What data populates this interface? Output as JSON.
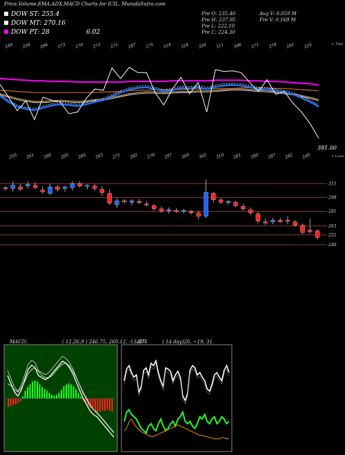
{
  "title": "Price,Volume,EMA,ADX,MACD Charts for ICIL. MunafaSutra.com",
  "legend": [
    {
      "label": "DOW ST: 255.4",
      "color": "#ffffff"
    },
    {
      "label": "DOW MT: 270.16",
      "color": "#ffffff"
    },
    {
      "label": "DOW PT: 28",
      "color": "#ff00ff"
    }
  ],
  "legend_extra": "6.02",
  "stats": {
    "pre_o": "Pre  O: 235.40",
    "pre_h": "Pre  H: 237.95",
    "pre_l": "Pre  L: 222.10",
    "pre_c": "Pre  C: 224.30",
    "avg_v": "Avg V: 0.059 M",
    "pre_v": "Pre  V: 0.169 M"
  },
  "top_label": "< Tops",
  "low_label": "< Lows",
  "last_close": "381.00",
  "chart_data": [
    {
      "type": "line",
      "title": "Price with EMAs (tops / lows)",
      "tops_labels": [
        "249",
        "259",
        "266",
        "273",
        "270",
        "273",
        "271",
        "287",
        "275",
        "314",
        "324",
        "326",
        "311",
        "306",
        "271",
        "279",
        "291",
        "225"
      ],
      "lows_labels": [
        "255",
        "261",
        "266",
        "265",
        "285",
        "263",
        "271",
        "282",
        "279",
        "297",
        "309",
        "302",
        "310",
        "281",
        "280",
        "287",
        "282",
        "249"
      ],
      "price_line": [
        292,
        270,
        247,
        264,
        232,
        270,
        265,
        262,
        242,
        245,
        268,
        284,
        282,
        320,
        302,
        321,
        312,
        312,
        278,
        257,
        284,
        304,
        276,
        295,
        245,
        317,
        314,
        315,
        312,
        295,
        280,
        300,
        275,
        280,
        260,
        245,
        225,
        200
      ],
      "ema_short": [
        272,
        262,
        254,
        250,
        248,
        252,
        256,
        258,
        257,
        255,
        258,
        262,
        265,
        272,
        278,
        283,
        286,
        287,
        284,
        280,
        282,
        286,
        285,
        287,
        284,
        288,
        290,
        291,
        290,
        287,
        284,
        284,
        281,
        279,
        275,
        269,
        262,
        254
      ],
      "ema_mid": [
        276,
        272,
        268,
        265,
        263,
        263,
        264,
        265,
        264,
        263,
        264,
        266,
        267,
        270,
        273,
        276,
        278,
        279,
        279,
        278,
        279,
        280,
        280,
        281,
        281,
        282,
        283,
        284,
        284,
        283,
        282,
        281,
        280,
        278,
        276,
        273,
        270,
        266
      ],
      "ema_long": [
        282,
        281,
        280,
        279,
        278,
        278,
        278,
        278,
        278,
        278,
        278,
        278,
        279,
        279,
        280,
        281,
        282,
        282,
        283,
        283,
        283,
        283,
        284,
        284,
        284,
        285,
        285,
        285,
        286,
        286,
        286,
        285,
        285,
        285,
        284,
        283,
        282,
        281
      ],
      "dow_pt_line": [
        302,
        301,
        300,
        299,
        298,
        298,
        297,
        297,
        297,
        296,
        296,
        296,
        296,
        296,
        296,
        297,
        297,
        297,
        297,
        297,
        298,
        298,
        298,
        298,
        298,
        299,
        299,
        299,
        299,
        298,
        298,
        297,
        297,
        296,
        295,
        294,
        293,
        291
      ]
    },
    {
      "type": "candlestick",
      "title": "Candles",
      "level_labels": [
        "315",
        "298",
        "281",
        "263",
        "252",
        "240"
      ],
      "candles": [
        {
          "o": 310,
          "h": 312,
          "l": 306,
          "c": 309,
          "up": false
        },
        {
          "o": 309,
          "h": 318,
          "l": 305,
          "c": 313,
          "up": true
        },
        {
          "o": 311,
          "h": 315,
          "l": 306,
          "c": 308,
          "up": false
        },
        {
          "o": 312,
          "h": 318,
          "l": 309,
          "c": 314,
          "up": true
        },
        {
          "o": 313,
          "h": 317,
          "l": 308,
          "c": 310,
          "up": false
        },
        {
          "o": 307,
          "h": 312,
          "l": 302,
          "c": 305,
          "up": false
        },
        {
          "o": 303,
          "h": 315,
          "l": 301,
          "c": 311,
          "up": true
        },
        {
          "o": 311,
          "h": 313,
          "l": 305,
          "c": 308,
          "up": false
        },
        {
          "o": 309,
          "h": 312,
          "l": 305,
          "c": 311,
          "up": true
        },
        {
          "o": 310,
          "h": 318,
          "l": 306,
          "c": 315,
          "up": true
        },
        {
          "o": 315,
          "h": 318,
          "l": 310,
          "c": 312,
          "up": false
        },
        {
          "o": 312,
          "h": 314,
          "l": 308,
          "c": 313,
          "up": true
        },
        {
          "o": 312,
          "h": 315,
          "l": 306,
          "c": 309,
          "up": false
        },
        {
          "o": 308,
          "h": 312,
          "l": 300,
          "c": 304,
          "up": false
        },
        {
          "o": 303,
          "h": 308,
          "l": 289,
          "c": 291,
          "up": false
        },
        {
          "o": 289,
          "h": 297,
          "l": 285,
          "c": 294,
          "up": true
        },
        {
          "o": 294,
          "h": 296,
          "l": 290,
          "c": 293,
          "up": false
        },
        {
          "o": 292,
          "h": 296,
          "l": 288,
          "c": 294,
          "up": true
        },
        {
          "o": 293,
          "h": 296,
          "l": 290,
          "c": 292,
          "up": false
        },
        {
          "o": 290,
          "h": 293,
          "l": 287,
          "c": 289,
          "up": false
        },
        {
          "o": 288,
          "h": 290,
          "l": 282,
          "c": 284,
          "up": false
        },
        {
          "o": 284,
          "h": 287,
          "l": 279,
          "c": 281,
          "up": false
        },
        {
          "o": 282,
          "h": 286,
          "l": 278,
          "c": 283,
          "up": true
        },
        {
          "o": 282,
          "h": 285,
          "l": 279,
          "c": 281,
          "up": false
        },
        {
          "o": 281,
          "h": 284,
          "l": 278,
          "c": 282,
          "up": true
        },
        {
          "o": 281,
          "h": 283,
          "l": 277,
          "c": 279,
          "up": false
        },
        {
          "o": 279,
          "h": 282,
          "l": 271,
          "c": 275,
          "up": false
        },
        {
          "o": 275,
          "h": 320,
          "l": 273,
          "c": 304,
          "up": true
        },
        {
          "o": 303,
          "h": 305,
          "l": 292,
          "c": 295,
          "up": false
        },
        {
          "o": 295,
          "h": 297,
          "l": 290,
          "c": 292,
          "up": false
        },
        {
          "o": 292,
          "h": 295,
          "l": 289,
          "c": 293,
          "up": true
        },
        {
          "o": 292,
          "h": 294,
          "l": 286,
          "c": 288,
          "up": false
        },
        {
          "o": 287,
          "h": 290,
          "l": 282,
          "c": 284,
          "up": false
        },
        {
          "o": 283,
          "h": 286,
          "l": 276,
          "c": 279,
          "up": false
        },
        {
          "o": 278,
          "h": 280,
          "l": 266,
          "c": 269,
          "up": false
        },
        {
          "o": 268,
          "h": 272,
          "l": 264,
          "c": 268,
          "up": false
        },
        {
          "o": 268,
          "h": 273,
          "l": 265,
          "c": 270,
          "up": true
        },
        {
          "o": 270,
          "h": 273,
          "l": 267,
          "c": 268,
          "up": false
        },
        {
          "o": 269,
          "h": 275,
          "l": 265,
          "c": 270,
          "up": false
        },
        {
          "o": 268,
          "h": 270,
          "l": 262,
          "c": 264,
          "up": false
        },
        {
          "o": 264,
          "h": 266,
          "l": 253,
          "c": 255,
          "up": false
        },
        {
          "o": 256,
          "h": 272,
          "l": 254,
          "c": 258,
          "up": false
        },
        {
          "o": 257,
          "h": 259,
          "l": 246,
          "c": 249,
          "up": false
        }
      ]
    },
    {
      "type": "bar",
      "title": "MACD",
      "header": "MACD:",
      "params": "( 12,26,9 ) 246.75, 260.12, -13.37",
      "histogram": [
        -9,
        -8,
        -7,
        -6,
        -5,
        -3,
        2,
        8,
        12,
        15,
        18,
        19,
        18,
        15,
        12,
        10,
        8,
        6,
        4,
        3,
        4,
        6,
        9,
        13,
        15,
        16,
        15,
        13,
        10,
        6,
        2,
        -2,
        -5,
        -8,
        -10,
        -12,
        -13,
        -14,
        -14,
        -13,
        -13,
        -12,
        -13,
        -14
      ],
      "macd_line": [
        0.5,
        0.3,
        0.1,
        0.0,
        0.15,
        0.4,
        0.65,
        0.75,
        0.7,
        0.5,
        0.45,
        0.4,
        0.45,
        0.55,
        0.65,
        0.75,
        0.85,
        0.8,
        0.7,
        0.55,
        0.35,
        0.15,
        -0.05,
        -0.2,
        -0.35,
        -0.45,
        -0.5,
        -0.6,
        -0.7,
        -0.8,
        -0.9,
        -1.0
      ],
      "signal_line": [
        0.3,
        0.25,
        0.15,
        0.1,
        0.2,
        0.35,
        0.55,
        0.65,
        0.68,
        0.6,
        0.5,
        0.45,
        0.45,
        0.5,
        0.6,
        0.7,
        0.78,
        0.8,
        0.74,
        0.62,
        0.45,
        0.28,
        0.1,
        -0.05,
        -0.2,
        -0.32,
        -0.42,
        -0.5,
        -0.6,
        -0.7,
        -0.8,
        -0.9
      ],
      "zero_line": 0
    },
    {
      "type": "line",
      "title": "ADX",
      "header": "ADX",
      "params": "( 14 day)26, ~19, 31",
      "di_plus": [
        55,
        65,
        68,
        62,
        58,
        60,
        45,
        50,
        64,
        66,
        60,
        70,
        68,
        72,
        62,
        55,
        50,
        66,
        65,
        63,
        55,
        60,
        63,
        58,
        42,
        38,
        44,
        64,
        68,
        66,
        60,
        62,
        58,
        55,
        48,
        46,
        52,
        60,
        62,
        58,
        55,
        64,
        68,
        62
      ],
      "di_minus": [
        20,
        28,
        30,
        26,
        24,
        22,
        18,
        14,
        12,
        10,
        16,
        18,
        14,
        12,
        18,
        22,
        16,
        12,
        14,
        18,
        20,
        16,
        22,
        24,
        28,
        20,
        18,
        20,
        16,
        14,
        18,
        24,
        22,
        26,
        20,
        18,
        22,
        24,
        18,
        20,
        24,
        22,
        18,
        20
      ],
      "adx": [
        12,
        14,
        20,
        22,
        18,
        15,
        13,
        11,
        10,
        9,
        8,
        7,
        7,
        8,
        9,
        10,
        11,
        12,
        13,
        14,
        15,
        16,
        17,
        16,
        15,
        14,
        13,
        12,
        11,
        10,
        9,
        8,
        8,
        7,
        7,
        6,
        6,
        5,
        5,
        5,
        6,
        6,
        5,
        5
      ]
    }
  ]
}
